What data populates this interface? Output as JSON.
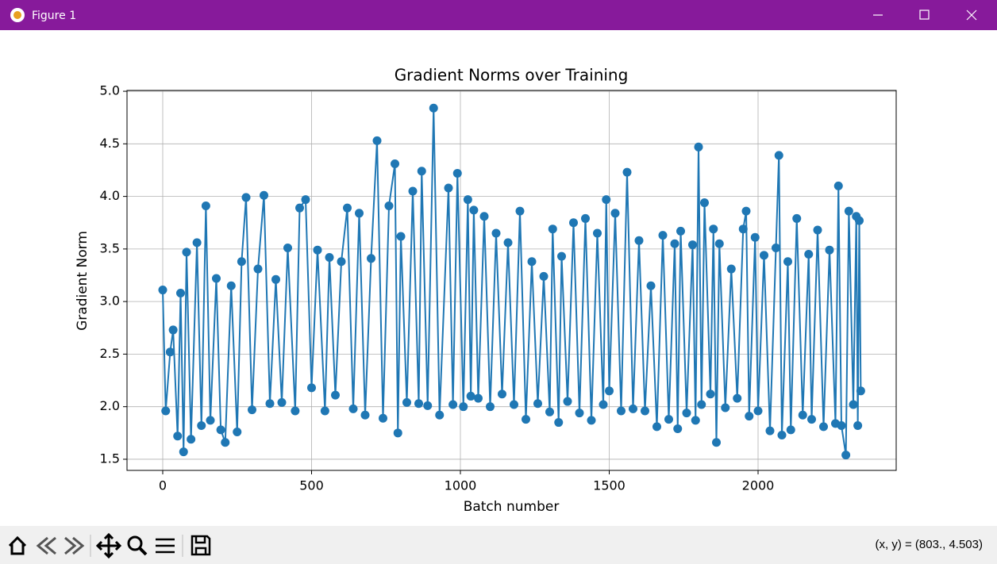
{
  "window": {
    "title": "Figure 1",
    "status": "(x, y) = (803., 4.503)"
  },
  "chart_data": {
    "type": "line",
    "title": "Gradient Norms over Training",
    "x_label": "Batch number",
    "y_label": "Gradient Norm",
    "color": "#1f77b4",
    "grid": true,
    "markers": true,
    "xlim": [
      -120,
      2464
    ],
    "ylim": [
      1.394,
      5.008
    ],
    "xticks": [
      0,
      500,
      1000,
      1500,
      2000
    ],
    "yticks": [
      1.5,
      {
        "value": 2,
        "label": "2.0"
      },
      2.5,
      {
        "value": 3,
        "label": "3.0"
      },
      3.5,
      {
        "value": 4,
        "label": "4.0"
      },
      4.5,
      {
        "value": 5,
        "label": "5.0"
      }
    ],
    "x": [
      0,
      10,
      25,
      35,
      50,
      60,
      70,
      80,
      95,
      115,
      130,
      145,
      160,
      180,
      195,
      210,
      230,
      250,
      265,
      280,
      300,
      320,
      340,
      360,
      380,
      400,
      420,
      445,
      460,
      480,
      500,
      520,
      545,
      560,
      580,
      600,
      620,
      640,
      660,
      680,
      700,
      720,
      740,
      760,
      780,
      790,
      800,
      820,
      840,
      860,
      870,
      890,
      910,
      930,
      960,
      975,
      990,
      1010,
      1025,
      1035,
      1045,
      1060,
      1080,
      1100,
      1120,
      1140,
      1160,
      1180,
      1200,
      1220,
      1240,
      1260,
      1280,
      1300,
      1310,
      1330,
      1340,
      1360,
      1380,
      1400,
      1420,
      1440,
      1460,
      1480,
      1490,
      1500,
      1520,
      1540,
      1560,
      1580,
      1600,
      1620,
      1640,
      1660,
      1680,
      1700,
      1720,
      1730,
      1740,
      1760,
      1780,
      1790,
      1800,
      1810,
      1820,
      1840,
      1850,
      1860,
      1870,
      1890,
      1910,
      1930,
      1950,
      1960,
      1970,
      1990,
      2000,
      2020,
      2040,
      2060,
      2070,
      2080,
      2100,
      2110,
      2130,
      2150,
      2170,
      2180,
      2200,
      2220,
      2240,
      2260,
      2270,
      2280,
      2295,
      2305,
      2320,
      2330,
      2335,
      2340,
      2345
    ],
    "values": [
      3.11,
      1.96,
      2.52,
      2.73,
      1.72,
      3.08,
      1.57,
      3.47,
      1.69,
      3.56,
      1.82,
      3.91,
      1.87,
      3.22,
      1.78,
      1.66,
      3.15,
      1.76,
      3.38,
      3.99,
      1.97,
      3.31,
      4.01,
      2.03,
      3.21,
      2.04,
      3.51,
      1.96,
      3.89,
      3.97,
      2.18,
      3.49,
      1.96,
      3.42,
      2.11,
      3.38,
      3.89,
      1.98,
      3.84,
      1.92,
      3.41,
      4.53,
      1.89,
      3.91,
      4.31,
      1.75,
      3.62,
      2.04,
      4.05,
      2.03,
      4.24,
      2.01,
      4.84,
      1.92,
      4.08,
      2.02,
      4.22,
      2.0,
      3.97,
      2.1,
      3.87,
      2.08,
      3.81,
      2.0,
      3.65,
      2.12,
      3.56,
      2.02,
      3.86,
      1.88,
      3.38,
      2.03,
      3.24,
      1.95,
      3.69,
      1.85,
      3.43,
      2.05,
      3.75,
      1.94,
      3.79,
      1.87,
      3.65,
      2.02,
      3.97,
      2.15,
      3.84,
      1.96,
      4.23,
      1.98,
      3.58,
      1.96,
      3.15,
      1.81,
      3.63,
      1.88,
      3.55,
      1.79,
      3.67,
      1.94,
      3.54,
      1.87,
      4.47,
      2.02,
      3.94,
      2.12,
      3.69,
      1.66,
      3.55,
      1.99,
      3.31,
      2.08,
      3.69,
      3.86,
      1.91,
      3.61,
      1.96,
      3.44,
      1.77,
      3.51,
      4.39,
      1.73,
      3.38,
      1.78,
      3.79,
      1.92,
      3.45,
      1.88,
      3.68,
      1.81,
      3.49,
      1.84,
      4.1,
      1.82,
      1.54,
      3.86,
      2.02,
      3.81,
      1.82,
      3.77,
      2.15
    ]
  }
}
